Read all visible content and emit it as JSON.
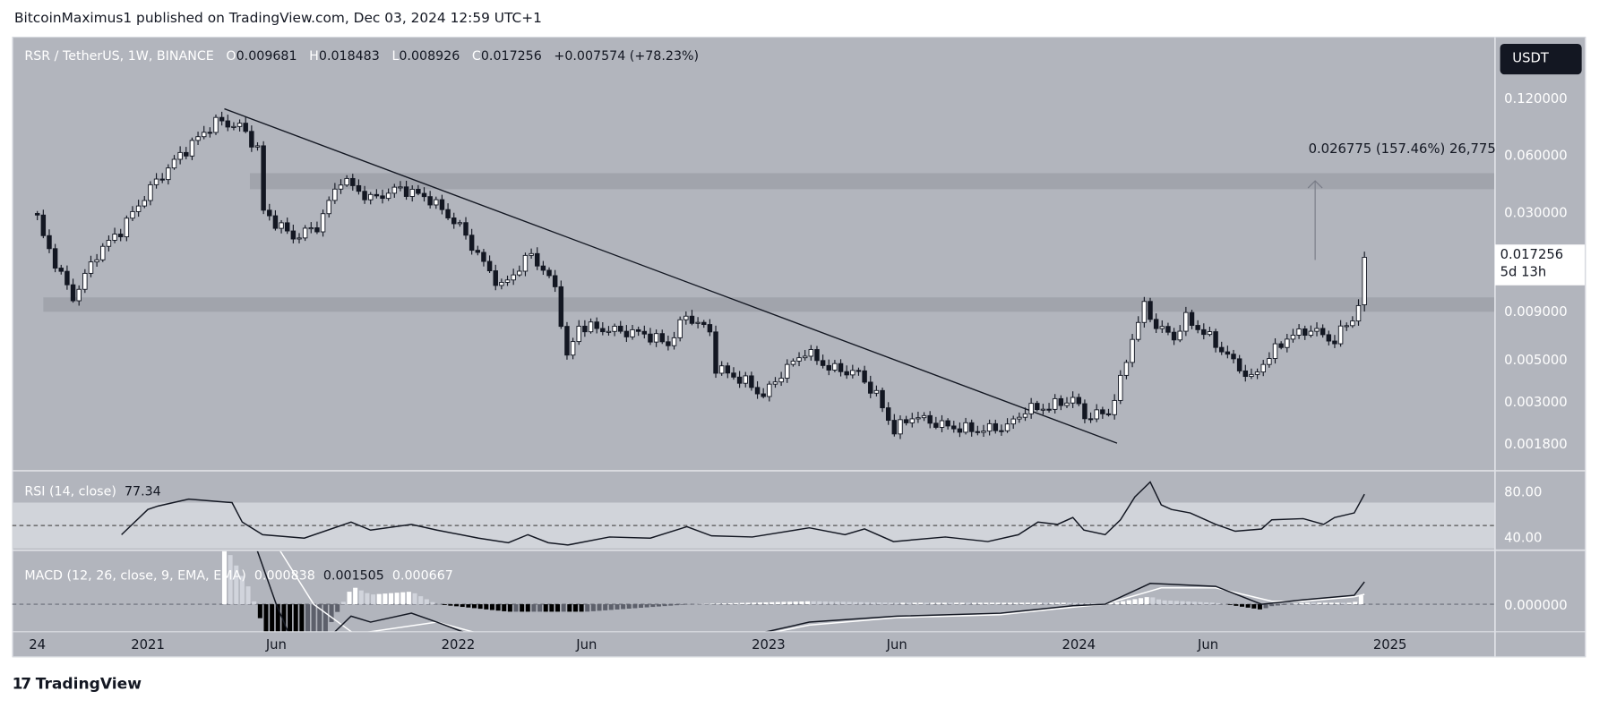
{
  "header": {
    "publisher": "BitcoinMaximus1 published on TradingView.com, Dec 03, 2024 12:59 UTC+1"
  },
  "legend": {
    "symbol": "RSR / TetherUS, 1W, BINANCE",
    "o_key": "O",
    "o": "0.009681",
    "h_key": "H",
    "h": "0.018483",
    "l_key": "L",
    "l": "0.008926",
    "c_key": "C",
    "c": "0.017256",
    "change": "+0.007574 (+78.23%)"
  },
  "currency_button": "USDT",
  "last_price": {
    "value": "0.017256",
    "countdown": "5d 13h"
  },
  "measure_label": "0.026775 (157.46%) 26,775",
  "rsi": {
    "label": "RSI (14, close)",
    "value": "77.34"
  },
  "macd": {
    "label": "MACD (12, 26, close, 9, EMA, EMA)",
    "hist": "0.000838",
    "macd": "0.001505",
    "signal": "0.000667"
  },
  "footer": {
    "logo": "TradingView"
  },
  "colors": {
    "pane_bg": "#b2b5bd",
    "up_body": "#ffffff",
    "down_body": "#131722",
    "rsi_band": "#d1d4da",
    "zone": "#9fa2aa"
  },
  "chart_data": {
    "type": "candlestick",
    "interval": "1W",
    "y_scale": "log",
    "ylim": [
      0.0014,
      0.16
    ],
    "price_ticks": [
      "0.120000",
      "0.060000",
      "0.030000",
      "0.009000",
      "0.005000",
      "0.003000",
      "0.001800"
    ],
    "time_ticks": [
      {
        "label": "24",
        "date": "2020-08-24"
      },
      {
        "label": "2021",
        "date": "2021-01-01"
      },
      {
        "label": "Jun",
        "date": "2021-06-01"
      },
      {
        "label": "2022",
        "date": "2022-01-01"
      },
      {
        "label": "Jun",
        "date": "2022-06-01"
      },
      {
        "label": "2023",
        "date": "2023-01-01"
      },
      {
        "label": "Jun",
        "date": "2023-06-01"
      },
      {
        "label": "2024",
        "date": "2024-01-01"
      },
      {
        "label": "Jun",
        "date": "2024-06-01"
      },
      {
        "label": "2025",
        "date": "2025-01-01"
      }
    ],
    "close_path": [
      [
        "2020-08-24",
        0.028
      ],
      [
        "2020-08-31",
        0.022
      ],
      [
        "2020-09-28",
        0.012
      ],
      [
        "2020-10-05",
        0.0105
      ],
      [
        "2020-11-02",
        0.018
      ],
      [
        "2020-11-30",
        0.024
      ],
      [
        "2021-01-04",
        0.04
      ],
      [
        "2021-02-08",
        0.06
      ],
      [
        "2021-03-22",
        0.09
      ],
      [
        "2021-04-19",
        0.085
      ],
      [
        "2021-05-10",
        0.065
      ],
      [
        "2021-05-17",
        0.03
      ],
      [
        "2021-06-21",
        0.022
      ],
      [
        "2021-07-19",
        0.025
      ],
      [
        "2021-08-16",
        0.045
      ],
      [
        "2021-09-20",
        0.035
      ],
      [
        "2021-10-25",
        0.04
      ],
      [
        "2021-11-29",
        0.035
      ],
      [
        "2022-01-03",
        0.025
      ],
      [
        "2022-01-31",
        0.016
      ],
      [
        "2022-02-21",
        0.012
      ],
      [
        "2022-03-28",
        0.018
      ],
      [
        "2022-04-25",
        0.012
      ],
      [
        "2022-05-02",
        0.008
      ],
      [
        "2022-05-09",
        0.005
      ],
      [
        "2022-05-23",
        0.0075
      ],
      [
        "2022-06-20",
        0.0072
      ],
      [
        "2022-08-08",
        0.0068
      ],
      [
        "2022-09-05",
        0.006
      ],
      [
        "2022-09-26",
        0.0085
      ],
      [
        "2022-10-24",
        0.007
      ],
      [
        "2022-10-31",
        0.0045
      ],
      [
        "2022-12-05",
        0.0038
      ],
      [
        "2022-12-26",
        0.0032
      ],
      [
        "2023-01-16",
        0.0042
      ],
      [
        "2023-02-13",
        0.0055
      ],
      [
        "2023-03-13",
        0.0045
      ],
      [
        "2023-04-17",
        0.0042
      ],
      [
        "2023-05-08",
        0.0032
      ],
      [
        "2023-05-29",
        0.0021
      ],
      [
        "2023-06-19",
        0.0025
      ],
      [
        "2023-07-31",
        0.0022
      ],
      [
        "2023-09-04",
        0.0021
      ],
      [
        "2023-10-09",
        0.0022
      ],
      [
        "2023-10-30",
        0.0027
      ],
      [
        "2023-11-27",
        0.0028
      ],
      [
        "2023-12-25",
        0.0031
      ],
      [
        "2024-01-08",
        0.0025
      ],
      [
        "2024-02-05",
        0.0026
      ],
      [
        "2024-02-19",
        0.0038
      ],
      [
        "2024-03-04",
        0.0065
      ],
      [
        "2024-03-18",
        0.0095
      ],
      [
        "2024-04-01",
        0.0075
      ],
      [
        "2024-04-22",
        0.0065
      ],
      [
        "2024-05-06",
        0.0082
      ],
      [
        "2024-06-03",
        0.0065
      ],
      [
        "2024-06-24",
        0.0052
      ],
      [
        "2024-07-22",
        0.0039
      ],
      [
        "2024-08-05",
        0.0048
      ],
      [
        "2024-09-02",
        0.0065
      ],
      [
        "2024-09-30",
        0.0072
      ],
      [
        "2024-10-28",
        0.0062
      ],
      [
        "2024-11-11",
        0.0078
      ],
      [
        "2024-11-18",
        0.0081
      ],
      [
        "2024-11-25",
        0.009681
      ]
    ],
    "last_candle": {
      "date": "2024-12-02",
      "open": 0.009681,
      "high": 0.018483,
      "low": 0.008926,
      "close": 0.017256
    },
    "zones": [
      {
        "from": "2021-05-01",
        "low": 0.0395,
        "high": 0.048
      },
      {
        "from": "2020-08-31",
        "low": 0.0089,
        "high": 0.0106
      }
    ],
    "trendline": [
      [
        "2021-04-01",
        0.105
      ],
      [
        "2024-02-15",
        0.0018
      ]
    ],
    "measure_arrow": {
      "date": "2024-10-05",
      "from": 0.0167,
      "to": 0.0437
    },
    "rsi": {
      "ylim": [
        20,
        100
      ],
      "ticks": [
        "80.00",
        "40.00"
      ],
      "band": [
        30,
        70
      ],
      "mid": 50,
      "points": [
        [
          "2020-12-01",
          42
        ],
        [
          "2021-01-01",
          64
        ],
        [
          "2021-01-13",
          67
        ],
        [
          "2021-02-18",
          73
        ],
        [
          "2021-04-10",
          70
        ],
        [
          "2021-04-22",
          53
        ],
        [
          "2021-05-16",
          42
        ],
        [
          "2021-07-04",
          39
        ],
        [
          "2021-08-28",
          53
        ],
        [
          "2021-09-20",
          46
        ],
        [
          "2021-11-07",
          51
        ],
        [
          "2021-12-07",
          46
        ],
        [
          "2022-01-25",
          39
        ],
        [
          "2022-03-01",
          35
        ],
        [
          "2022-03-24",
          42
        ],
        [
          "2022-04-17",
          35
        ],
        [
          "2022-05-10",
          33
        ],
        [
          "2022-06-28",
          40
        ],
        [
          "2022-08-15",
          39
        ],
        [
          "2022-09-27",
          49
        ],
        [
          "2022-10-26",
          41
        ],
        [
          "2022-12-13",
          40
        ],
        [
          "2023-02-18",
          48
        ],
        [
          "2023-04-01",
          42
        ],
        [
          "2023-04-24",
          47
        ],
        [
          "2023-05-28",
          36
        ],
        [
          "2023-07-28",
          40
        ],
        [
          "2023-09-16",
          36
        ],
        [
          "2023-10-22",
          42
        ],
        [
          "2023-11-14",
          53
        ],
        [
          "2023-12-07",
          51
        ],
        [
          "2023-12-25",
          57
        ],
        [
          "2024-01-07",
          46
        ],
        [
          "2024-02-01",
          42
        ],
        [
          "2024-02-19",
          55
        ],
        [
          "2024-03-07",
          75
        ],
        [
          "2024-03-25",
          88
        ],
        [
          "2024-04-07",
          68
        ],
        [
          "2024-04-19",
          64
        ],
        [
          "2024-05-11",
          61
        ],
        [
          "2024-06-10",
          51
        ],
        [
          "2024-07-03",
          45
        ],
        [
          "2024-08-03",
          47
        ],
        [
          "2024-08-15",
          55
        ],
        [
          "2024-09-21",
          56
        ],
        [
          "2024-10-15",
          51
        ],
        [
          "2024-10-28",
          57
        ],
        [
          "2024-11-20",
          61
        ],
        [
          "2024-12-02",
          77.34
        ]
      ]
    },
    "macd": {
      "ticks": [
        "0.000000"
      ],
      "macd_line": [
        [
          "2021-04-01",
          0.008
        ],
        [
          "2021-05-01",
          0.005
        ],
        [
          "2021-06-01",
          0.0
        ],
        [
          "2021-07-01",
          -0.004
        ],
        [
          "2021-08-28",
          -0.0008
        ],
        [
          "2021-09-20",
          -0.0012
        ],
        [
          "2021-11-07",
          -0.0006
        ],
        [
          "2021-12-07",
          -0.0012
        ],
        [
          "2022-03-01",
          -0.003
        ],
        [
          "2022-06-01",
          -0.004
        ],
        [
          "2022-10-01",
          -0.003
        ],
        [
          "2023-02-18",
          -0.0012
        ],
        [
          "2023-06-01",
          -0.0008
        ],
        [
          "2023-10-01",
          -0.0006
        ],
        [
          "2023-12-25",
          -0.0001
        ],
        [
          "2024-02-01",
          0.0
        ],
        [
          "2024-03-25",
          0.0014
        ],
        [
          "2024-06-10",
          0.0012
        ],
        [
          "2024-08-03",
          0.0
        ],
        [
          "2024-09-21",
          0.0003
        ],
        [
          "2024-11-20",
          0.0006
        ],
        [
          "2024-12-02",
          0.001505
        ]
      ],
      "signal_line": [
        [
          "2021-04-01",
          0.004
        ],
        [
          "2021-06-01",
          0.004
        ],
        [
          "2021-07-15",
          0.0
        ],
        [
          "2021-09-01",
          -0.002
        ],
        [
          "2021-12-07",
          -0.0012
        ],
        [
          "2022-03-01",
          -0.0025
        ],
        [
          "2022-06-01",
          -0.0035
        ],
        [
          "2022-10-01",
          -0.003
        ],
        [
          "2023-02-18",
          -0.0014
        ],
        [
          "2023-06-01",
          -0.0009
        ],
        [
          "2023-10-01",
          -0.0007
        ],
        [
          "2023-12-25",
          -0.0002
        ],
        [
          "2024-02-01",
          0.0
        ],
        [
          "2024-04-07",
          0.0011
        ],
        [
          "2024-06-10",
          0.0011
        ],
        [
          "2024-08-15",
          0.0002
        ],
        [
          "2024-09-21",
          0.0002
        ],
        [
          "2024-11-20",
          0.0005
        ],
        [
          "2024-12-02",
          0.000667
        ]
      ]
    }
  }
}
